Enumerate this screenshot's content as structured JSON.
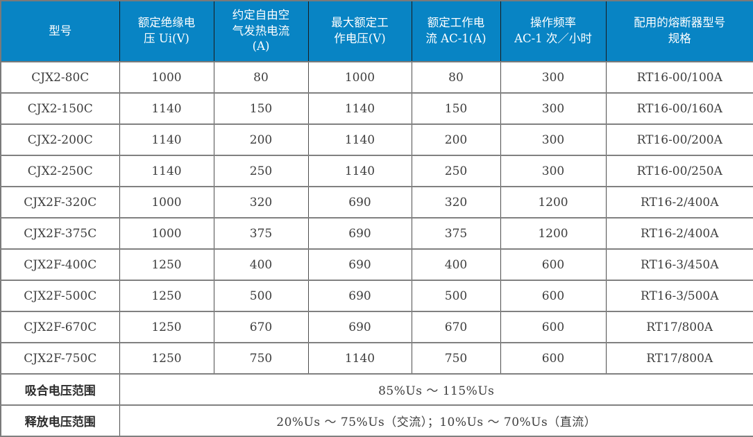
{
  "style": {
    "header_bg": "#0884C4",
    "header_text": "#FFFFFF",
    "body_text": "#3D3D3D",
    "horizontal_grid": "#808080",
    "vertical_grid": "#4D4D4D"
  },
  "table": {
    "columns": [
      "型号",
      "额定绝缘电\n压 Ui(V)",
      "约定自由空\n气发热电流\n(A)",
      "最大额定工\n作电压(V)",
      "额定工作电\n流 AC-1(A)",
      "操作频率\nAC-1 次／小时",
      "配用的熔断器型号\n规格"
    ],
    "rows": [
      [
        "CJX2-80C",
        "1000",
        "80",
        "1000",
        "80",
        "300",
        "RT16-00/100A"
      ],
      [
        "CJX2-150C",
        "1140",
        "150",
        "1140",
        "150",
        "300",
        "RT16-00/160A"
      ],
      [
        "CJX2-200C",
        "1140",
        "200",
        "1140",
        "200",
        "300",
        "RT16-00/200A"
      ],
      [
        "CJX2-250C",
        "1140",
        "250",
        "1140",
        "250",
        "300",
        "RT16-00/250A"
      ],
      [
        "CJX2F-320C",
        "1000",
        "320",
        "690",
        "320",
        "1200",
        "RT16-2/400A"
      ],
      [
        "CJX2F-375C",
        "1000",
        "375",
        "690",
        "375",
        "1200",
        "RT16-2/400A"
      ],
      [
        "CJX2F-400C",
        "1250",
        "400",
        "690",
        "400",
        "600",
        "RT16-3/450A"
      ],
      [
        "CJX2F-500C",
        "1250",
        "500",
        "690",
        "500",
        "600",
        "RT16-3/500A"
      ],
      [
        "CJX2F-670C",
        "1250",
        "670",
        "690",
        "670",
        "600",
        "RT17/800A"
      ],
      [
        "CJX2F-750C",
        "1250",
        "750",
        "1140",
        "750",
        "600",
        "RT17/800A"
      ]
    ],
    "footer_rows": [
      {
        "label": "吸合电压范围",
        "value": "85%Us ～ 115%Us"
      },
      {
        "label": "释放电压范围",
        "value": "20%Us ～ 75%Us（交流）；10%Us ～ 70%Us（直流）"
      }
    ]
  }
}
